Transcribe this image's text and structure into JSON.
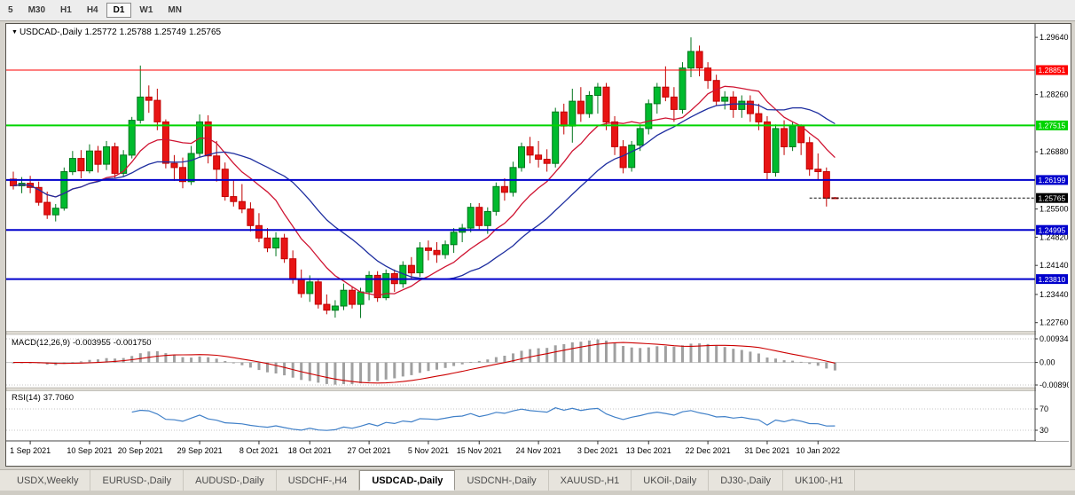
{
  "toolbar": {
    "timeframes": [
      {
        "label": "5",
        "active": false
      },
      {
        "label": "M30",
        "active": false
      },
      {
        "label": "H1",
        "active": false
      },
      {
        "label": "H4",
        "active": false
      },
      {
        "label": "D1",
        "active": true
      },
      {
        "label": "W1",
        "active": false
      },
      {
        "label": "MN",
        "active": false
      }
    ]
  },
  "chart_header": {
    "symbol": "USDCAD-,Daily",
    "open": "1.25772",
    "high": "1.25788",
    "low": "1.25749",
    "close": "1.25765"
  },
  "current_price": {
    "value": 1.25765,
    "label": "1.25765",
    "color": "#000000"
  },
  "levels": [
    {
      "label": "1.28851",
      "value": 1.28851,
      "color": "#fe0000",
      "width": 1
    },
    {
      "label": "1.27515",
      "value": 1.27515,
      "color": "#00d400",
      "width": 2
    },
    {
      "label": "1.26199",
      "value": 1.26199,
      "color": "#0000cc",
      "width": 2
    },
    {
      "label": "1.24995",
      "value": 1.24995,
      "color": "#0000cc",
      "width": 2
    },
    {
      "label": "1.23810",
      "value": 1.2381,
      "color": "#0000cc",
      "width": 2
    }
  ],
  "price_axis": {
    "ticks": [
      {
        "label": "1.29640",
        "value": 1.2964
      },
      {
        "label": "1.28260",
        "value": 1.2826
      },
      {
        "label": "1.26880",
        "value": 1.2688
      },
      {
        "label": "1.25500",
        "value": 1.255
      },
      {
        "label": "1.24820",
        "value": 1.2482
      },
      {
        "label": "1.24140",
        "value": 1.2414
      },
      {
        "label": "1.23440",
        "value": 1.2344
      },
      {
        "label": "1.22760",
        "value": 1.2276
      }
    ]
  },
  "macd": {
    "label": "MACD(12,26,9)",
    "value_main": "-0.003955",
    "value_signal": "-0.001750",
    "scale": {
      "max": 0.009345,
      "min": -0.008902
    },
    "axis": [
      {
        "label": "0.009345",
        "value": 0.009345
      },
      {
        "label": "0.00",
        "value": 0
      },
      {
        "label": "-0.008902",
        "value": -0.008902
      }
    ]
  },
  "rsi": {
    "label": "RSI(14)",
    "value": "37.7060",
    "axis": [
      {
        "label": "70",
        "value": 70
      },
      {
        "label": "30",
        "value": 30
      }
    ]
  },
  "date_axis": {
    "labels": [
      {
        "index": 2,
        "text": "1 Sep 2021"
      },
      {
        "index": 9,
        "text": "10 Sep 2021"
      },
      {
        "index": 15,
        "text": "20 Sep 2021"
      },
      {
        "index": 22,
        "text": "29 Sep 2021"
      },
      {
        "index": 29,
        "text": "8 Oct 2021"
      },
      {
        "index": 35,
        "text": "18 Oct 2021"
      },
      {
        "index": 42,
        "text": "27 Oct 2021"
      },
      {
        "index": 49,
        "text": "5 Nov 2021"
      },
      {
        "index": 55,
        "text": "15 Nov 2021"
      },
      {
        "index": 62,
        "text": "24 Nov 2021"
      },
      {
        "index": 69,
        "text": "3 Dec 2021"
      },
      {
        "index": 75,
        "text": "13 Dec 2021"
      },
      {
        "index": 82,
        "text": "22 Dec 2021"
      },
      {
        "index": 89,
        "text": "31 Dec 2021"
      },
      {
        "index": 95,
        "text": "10 Jan 2022"
      }
    ]
  },
  "tabs": [
    {
      "label": "USDX,Weekly",
      "active": false
    },
    {
      "label": "EURUSD-,Daily",
      "active": false
    },
    {
      "label": "AUDUSD-,Daily",
      "active": false
    },
    {
      "label": "USDCHF-,H4",
      "active": false
    },
    {
      "label": "USDCAD-,Daily",
      "active": true
    },
    {
      "label": "USDCNH-,Daily",
      "active": false
    },
    {
      "label": "XAUUSD-,H1",
      "active": false
    },
    {
      "label": "UKOil-,Daily",
      "active": false
    },
    {
      "label": "DJ30-,Daily",
      "active": false
    },
    {
      "label": "UK100-,H1",
      "active": false
    }
  ],
  "theme": {
    "candle_up": "#00bb2e",
    "candle_up_border": "#00751c",
    "candle_down": "#e81414",
    "candle_down_border": "#c00000",
    "macd_histogram": "#a0a0a0",
    "macd_signal": "#cc0000",
    "rsi_line": "#4080c8",
    "grid_dotted": "#c4c4c4",
    "axis_line": "#444444"
  },
  "chart_data": {
    "type": "candlestick",
    "symbol": "USDCAD",
    "timeframe": "Daily",
    "price_range": {
      "top": 1.2992,
      "bottom": 1.2256
    },
    "moving_averages": [
      {
        "type": "sma",
        "period": 10,
        "color": "#cf1432"
      },
      {
        "type": "sma",
        "period": 20,
        "color": "#1f2fa0"
      }
    ],
    "macd_params": {
      "fast": 12,
      "slow": 26,
      "signal": 9
    },
    "rsi_params": {
      "period": 14
    },
    "dates": [
      "30 Aug 2021",
      "31 Aug 2021",
      "1 Sep 2021",
      "2 Sep 2021",
      "3 Sep 2021",
      "6 Sep 2021",
      "7 Sep 2021",
      "8 Sep 2021",
      "9 Sep 2021",
      "10 Sep 2021",
      "13 Sep 2021",
      "14 Sep 2021",
      "15 Sep 2021",
      "16 Sep 2021",
      "17 Sep 2021",
      "20 Sep 2021",
      "21 Sep 2021",
      "22 Sep 2021",
      "23 Sep 2021",
      "24 Sep 2021",
      "27 Sep 2021",
      "28 Sep 2021",
      "29 Sep 2021",
      "30 Sep 2021",
      "1 Oct 2021",
      "4 Oct 2021",
      "5 Oct 2021",
      "6 Oct 2021",
      "7 Oct 2021",
      "8 Oct 2021",
      "11 Oct 2021",
      "12 Oct 2021",
      "13 Oct 2021",
      "14 Oct 2021",
      "15 Oct 2021",
      "18 Oct 2021",
      "19 Oct 2021",
      "20 Oct 2021",
      "21 Oct 2021",
      "22 Oct 2021",
      "25 Oct 2021",
      "26 Oct 2021",
      "27 Oct 2021",
      "28 Oct 2021",
      "29 Oct 2021",
      "1 Nov 2021",
      "2 Nov 2021",
      "3 Nov 2021",
      "4 Nov 2021",
      "5 Nov 2021",
      "8 Nov 2021",
      "9 Nov 2021",
      "10 Nov 2021",
      "11 Nov 2021",
      "12 Nov 2021",
      "15 Nov 2021",
      "16 Nov 2021",
      "17 Nov 2021",
      "18 Nov 2021",
      "19 Nov 2021",
      "22 Nov 2021",
      "23 Nov 2021",
      "24 Nov 2021",
      "25 Nov 2021",
      "26 Nov 2021",
      "29 Nov 2021",
      "30 Nov 2021",
      "1 Dec 2021",
      "2 Dec 2021",
      "3 Dec 2021",
      "6 Dec 2021",
      "7 Dec 2021",
      "8 Dec 2021",
      "9 Dec 2021",
      "10 Dec 2021",
      "13 Dec 2021",
      "14 Dec 2021",
      "15 Dec 2021",
      "16 Dec 2021",
      "17 Dec 2021",
      "20 Dec 2021",
      "21 Dec 2021",
      "22 Dec 2021",
      "23 Dec 2021",
      "24 Dec 2021",
      "27 Dec 2021",
      "28 Dec 2021",
      "29 Dec 2021",
      "30 Dec 2021",
      "31 Dec 2021",
      "3 Jan 2022",
      "4 Jan 2022",
      "5 Jan 2022",
      "6 Jan 2022",
      "7 Jan 2022",
      "10 Jan 2022",
      "11 Jan 2022",
      "12 Jan 2022"
    ],
    "ohlc": [
      [
        1.2622,
        1.264,
        1.2597,
        1.2606
      ],
      [
        1.2606,
        1.2627,
        1.2588,
        1.2612
      ],
      [
        1.2612,
        1.263,
        1.2588,
        1.2602
      ],
      [
        1.2602,
        1.2616,
        1.2558,
        1.2566
      ],
      [
        1.2566,
        1.2592,
        1.2526,
        1.2536
      ],
      [
        1.2536,
        1.2562,
        1.252,
        1.2552
      ],
      [
        1.2552,
        1.265,
        1.2546,
        1.264
      ],
      [
        1.264,
        1.269,
        1.2632,
        1.2672
      ],
      [
        1.2672,
        1.2692,
        1.2624,
        1.2642
      ],
      [
        1.2642,
        1.2706,
        1.2636,
        1.269
      ],
      [
        1.269,
        1.2702,
        1.2638,
        1.2658
      ],
      [
        1.2658,
        1.2714,
        1.2644,
        1.27
      ],
      [
        1.27,
        1.271,
        1.2624,
        1.2636
      ],
      [
        1.2636,
        1.2692,
        1.2628,
        1.268
      ],
      [
        1.268,
        1.2772,
        1.2672,
        1.2764
      ],
      [
        1.2764,
        1.2896,
        1.2756,
        1.282
      ],
      [
        1.282,
        1.2848,
        1.2782,
        1.2812
      ],
      [
        1.2812,
        1.284,
        1.274,
        1.276
      ],
      [
        1.276,
        1.2766,
        1.2648,
        1.266
      ],
      [
        1.266,
        1.268,
        1.2618,
        1.265
      ],
      [
        1.265,
        1.2674,
        1.26,
        1.2616
      ],
      [
        1.2616,
        1.2702,
        1.2608,
        1.2684
      ],
      [
        1.2684,
        1.2778,
        1.2674,
        1.276
      ],
      [
        1.276,
        1.2776,
        1.266,
        1.2678
      ],
      [
        1.2678,
        1.2714,
        1.2616,
        1.2646
      ],
      [
        1.2646,
        1.2662,
        1.257,
        1.258
      ],
      [
        1.258,
        1.262,
        1.2556,
        1.2568
      ],
      [
        1.2568,
        1.261,
        1.254,
        1.255
      ],
      [
        1.255,
        1.2566,
        1.2496,
        1.251
      ],
      [
        1.251,
        1.254,
        1.247,
        1.248
      ],
      [
        1.248,
        1.2504,
        1.2446,
        1.2456
      ],
      [
        1.2456,
        1.2494,
        1.2436,
        1.248
      ],
      [
        1.248,
        1.249,
        1.242,
        1.243
      ],
      [
        1.243,
        1.245,
        1.237,
        1.238
      ],
      [
        1.238,
        1.2404,
        1.2336,
        1.2346
      ],
      [
        1.2346,
        1.239,
        1.2326,
        1.2374
      ],
      [
        1.2374,
        1.238,
        1.231,
        1.232
      ],
      [
        1.232,
        1.2344,
        1.2296,
        1.2306
      ],
      [
        1.2306,
        1.233,
        1.2288,
        1.2316
      ],
      [
        1.2316,
        1.237,
        1.2306,
        1.2354
      ],
      [
        1.2354,
        1.2364,
        1.231,
        1.232
      ],
      [
        1.232,
        1.236,
        1.2287,
        1.235
      ],
      [
        1.235,
        1.24,
        1.233,
        1.239
      ],
      [
        1.239,
        1.24,
        1.2326,
        1.2336
      ],
      [
        1.2336,
        1.2404,
        1.233,
        1.2394
      ],
      [
        1.2394,
        1.2404,
        1.235,
        1.237
      ],
      [
        1.237,
        1.2424,
        1.236,
        1.2414
      ],
      [
        1.2414,
        1.2434,
        1.238,
        1.2396
      ],
      [
        1.2396,
        1.247,
        1.2386,
        1.2456
      ],
      [
        1.2456,
        1.2474,
        1.2426,
        1.245
      ],
      [
        1.245,
        1.247,
        1.242,
        1.244
      ],
      [
        1.244,
        1.2474,
        1.243,
        1.2464
      ],
      [
        1.2464,
        1.2504,
        1.2444,
        1.2494
      ],
      [
        1.2494,
        1.2514,
        1.247,
        1.2504
      ],
      [
        1.2504,
        1.2564,
        1.2494,
        1.2554
      ],
      [
        1.2554,
        1.2564,
        1.25,
        1.251
      ],
      [
        1.251,
        1.2554,
        1.249,
        1.2544
      ],
      [
        1.2544,
        1.2614,
        1.2534,
        1.2604
      ],
      [
        1.2604,
        1.2624,
        1.257,
        1.259
      ],
      [
        1.259,
        1.2664,
        1.258,
        1.265
      ],
      [
        1.265,
        1.271,
        1.264,
        1.27
      ],
      [
        1.27,
        1.2724,
        1.266,
        1.268
      ],
      [
        1.268,
        1.2714,
        1.265,
        1.267
      ],
      [
        1.267,
        1.2694,
        1.264,
        1.266
      ],
      [
        1.266,
        1.2794,
        1.265,
        1.2784
      ],
      [
        1.2784,
        1.2804,
        1.273,
        1.275
      ],
      [
        1.275,
        1.284,
        1.271,
        1.281
      ],
      [
        1.281,
        1.2844,
        1.276,
        1.278
      ],
      [
        1.278,
        1.2834,
        1.277,
        1.2824
      ],
      [
        1.2824,
        1.2854,
        1.278,
        1.2844
      ],
      [
        1.2844,
        1.2854,
        1.274,
        1.276
      ],
      [
        1.276,
        1.2774,
        1.268,
        1.27
      ],
      [
        1.27,
        1.2716,
        1.2636,
        1.265
      ],
      [
        1.265,
        1.2714,
        1.264,
        1.2704
      ],
      [
        1.2704,
        1.2754,
        1.269,
        1.2744
      ],
      [
        1.2744,
        1.2814,
        1.273,
        1.2804
      ],
      [
        1.2804,
        1.2854,
        1.278,
        1.2844
      ],
      [
        1.2844,
        1.2894,
        1.281,
        1.282
      ],
      [
        1.282,
        1.2844,
        1.276,
        1.279
      ],
      [
        1.279,
        1.2904,
        1.278,
        1.289
      ],
      [
        1.289,
        1.2964,
        1.2868,
        1.293
      ],
      [
        1.293,
        1.2944,
        1.287,
        1.289
      ],
      [
        1.289,
        1.2904,
        1.284,
        1.286
      ],
      [
        1.286,
        1.2874,
        1.28,
        1.281
      ],
      [
        1.281,
        1.2834,
        1.279,
        1.282
      ],
      [
        1.282,
        1.2834,
        1.277,
        1.279
      ],
      [
        1.279,
        1.2824,
        1.277,
        1.281
      ],
      [
        1.281,
        1.2824,
        1.276,
        1.278
      ],
      [
        1.278,
        1.2804,
        1.274,
        1.276
      ],
      [
        1.276,
        1.2774,
        1.262,
        1.2638
      ],
      [
        1.2638,
        1.2754,
        1.2628,
        1.2744
      ],
      [
        1.2744,
        1.2764,
        1.268,
        1.27
      ],
      [
        1.27,
        1.276,
        1.269,
        1.275
      ],
      [
        1.275,
        1.2754,
        1.268,
        1.271
      ],
      [
        1.271,
        1.2724,
        1.263,
        1.2646
      ],
      [
        1.2646,
        1.2684,
        1.262,
        1.264
      ],
      [
        1.264,
        1.265,
        1.2556,
        1.2576
      ],
      [
        1.25772,
        1.25788,
        1.25749,
        1.25765
      ]
    ]
  }
}
